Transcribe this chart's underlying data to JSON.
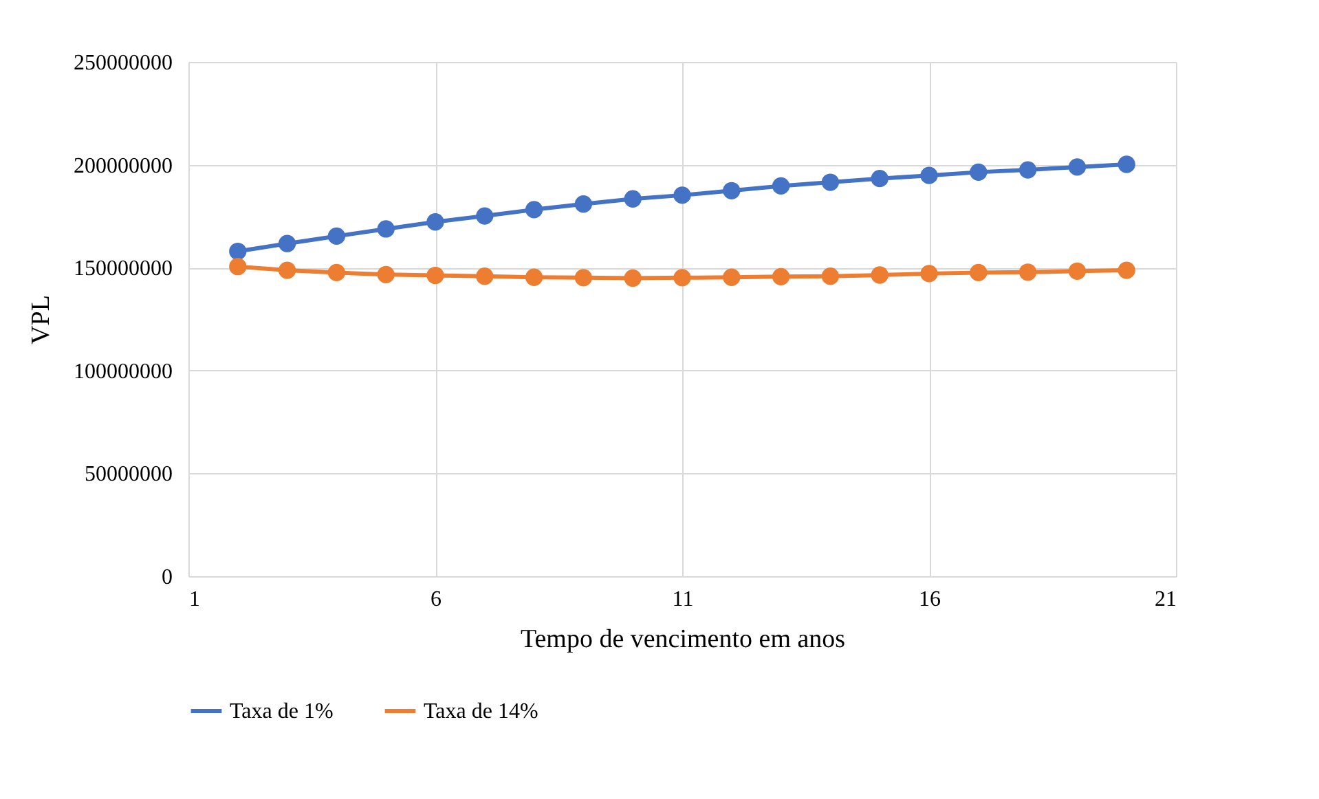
{
  "chart_data": {
    "type": "line",
    "xlabel": "Tempo de vencimento em anos",
    "ylabel": "VPL",
    "x": [
      2,
      3,
      4,
      5,
      6,
      7,
      8,
      9,
      10,
      11,
      12,
      13,
      14,
      15,
      16,
      17,
      18,
      19,
      20
    ],
    "series": [
      {
        "name": "Taxa de 1%",
        "color": "#4472c4",
        "values": [
          157900000,
          161700000,
          165300000,
          168800000,
          172200000,
          175100000,
          178200000,
          180900000,
          183400000,
          185200000,
          187400000,
          189700000,
          191500000,
          193300000,
          194800000,
          196400000,
          197500000,
          198900000,
          200200000
        ]
      },
      {
        "name": "Taxa de 14%",
        "color": "#ed7d31",
        "values": [
          150500000,
          148700000,
          147600000,
          146600000,
          146200000,
          145800000,
          145300000,
          145100000,
          144900000,
          145100000,
          145300000,
          145600000,
          145800000,
          146400000,
          147100000,
          147600000,
          147800000,
          148300000,
          148700000
        ]
      }
    ],
    "xlim": [
      1,
      21
    ],
    "xticks": [
      1,
      6,
      11,
      16,
      21
    ],
    "ylim": [
      0,
      250000000
    ],
    "yticks": [
      0,
      50000000,
      100000000,
      150000000,
      200000000,
      250000000
    ],
    "grid": true,
    "legend": "bottom",
    "marker": "circle",
    "line_style": "solid"
  }
}
